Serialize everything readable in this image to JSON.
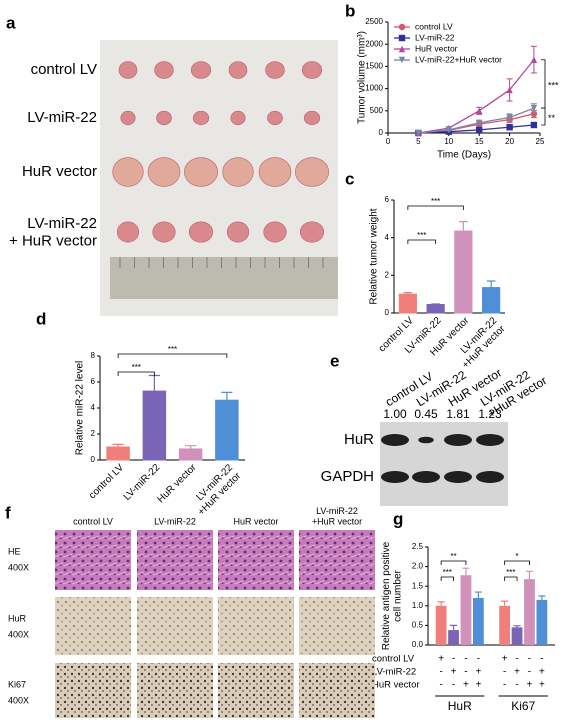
{
  "photo": {
    "panel": "a",
    "row_labels": [
      "control LV",
      "LV-miR-22",
      "HuR vector",
      "LV-miR-22\n+ HuR vector"
    ]
  },
  "chart_data": [
    {
      "panel": "b",
      "type": "line",
      "y_label": "Tumor volume (mm³)",
      "x_label": "Time (Days)",
      "xlim": [
        0,
        25
      ],
      "xticks": [
        0,
        5,
        10,
        15,
        20,
        25
      ],
      "ylim": [
        0,
        2500
      ],
      "yticks": [
        0,
        500,
        1000,
        1500,
        2000,
        2500
      ],
      "legend": "upper left",
      "x": [
        5,
        10,
        15,
        20,
        24
      ],
      "series": [
        {
          "name": "control LV",
          "color": "#d9546e",
          "marker": "circle",
          "values": [
            0,
            60,
            200,
            300,
            430
          ],
          "errors": [
            0,
            15,
            40,
            60,
            80
          ]
        },
        {
          "name": "LV-miR-22",
          "color": "#2f2f9e",
          "marker": "square",
          "values": [
            0,
            30,
            70,
            130,
            180
          ],
          "errors": [
            0,
            10,
            15,
            25,
            30
          ]
        },
        {
          "name": "HuR vector",
          "color": "#b5479b",
          "marker": "triangle-up",
          "values": [
            0,
            110,
            500,
            970,
            1650
          ],
          "errors": [
            0,
            30,
            80,
            250,
            300
          ]
        },
        {
          "name": "LV-miR-22+HuR vector",
          "color": "#7a86a8",
          "marker": "triangle-down",
          "values": [
            0,
            70,
            230,
            350,
            560
          ],
          "errors": [
            0,
            20,
            40,
            80,
            100
          ]
        }
      ],
      "annotations": [
        "***",
        "**"
      ]
    },
    {
      "panel": "c",
      "type": "bar",
      "y_label": "Relative tumor weight",
      "categories": [
        "control LV",
        "LV-miR-22",
        "HuR vector",
        "LV-miR-22\n+HuR vector"
      ],
      "values": [
        1.0,
        0.45,
        4.35,
        1.35
      ],
      "errors": [
        0.08,
        0.03,
        0.5,
        0.35
      ],
      "colors": [
        "#f07e7a",
        "#7a64b5",
        "#d091bb",
        "#4f8fd8"
      ],
      "ylim": [
        0,
        6
      ],
      "yticks": [
        0,
        2,
        4,
        6
      ],
      "annotations": [
        "***",
        "***"
      ]
    },
    {
      "panel": "d",
      "type": "bar",
      "y_label": "Relative miR-22 level",
      "categories": [
        "control LV",
        "LV-miR-22",
        "HuR vector",
        "LV-miR-22\n+HuR vector"
      ],
      "values": [
        1.0,
        5.3,
        0.85,
        4.6
      ],
      "errors": [
        0.2,
        1.2,
        0.25,
        0.6
      ],
      "colors": [
        "#f07e7a",
        "#7a64b5",
        "#d091bb",
        "#4f8fd8"
      ],
      "ylim": [
        0,
        8
      ],
      "yticks": [
        0,
        2,
        4,
        6,
        8
      ],
      "annotations": [
        "***",
        "***"
      ]
    },
    {
      "panel": "g",
      "type": "grouped_bar",
      "y_label": "Relative antigen positive\ncell number",
      "categories": [
        "HuR",
        "Ki67"
      ],
      "ylim": [
        0,
        2.5
      ],
      "yticks": [
        {
          "value": 0,
          "label": "0.0"
        },
        0.5,
        {
          "value": 1,
          "label": "1.0"
        },
        1.5,
        {
          "value": 2,
          "label": "2.0"
        },
        2.5
      ],
      "series": [
        {
          "color": "#f07e7a",
          "values": [
            1.0,
            1.0
          ],
          "errors": [
            0.1,
            0.12
          ]
        },
        {
          "color": "#7a64b5",
          "values": [
            0.38,
            0.45
          ],
          "errors": [
            0.12,
            0.04
          ]
        },
        {
          "color": "#d091bb",
          "values": [
            1.78,
            1.68
          ],
          "errors": [
            0.18,
            0.2
          ]
        },
        {
          "color": "#4f8fd8",
          "values": [
            1.2,
            1.15
          ],
          "errors": [
            0.15,
            0.1
          ]
        }
      ],
      "condition_table": [
        {
          "label": "control LV",
          "signs": [
            "+",
            "-",
            "-",
            "-",
            "+",
            "-",
            "-",
            "-"
          ]
        },
        {
          "label": "LV-miR-22",
          "signs": [
            "-",
            "+",
            "-",
            "+",
            "-",
            "+",
            "-",
            "+"
          ]
        },
        {
          "label": "HuR vector",
          "signs": [
            "-",
            "-",
            "+",
            "+",
            "-",
            "-",
            "+",
            "+"
          ]
        }
      ],
      "annotations": [
        "***",
        "**",
        "***",
        "*"
      ]
    }
  ],
  "blot": {
    "panel": "e",
    "lane_labels": [
      "control LV",
      "LV-miR-22",
      "HuR vector",
      "LV-miR-22\n+HuR vector"
    ],
    "ratios": [
      "1.00",
      "0.45",
      "1.81",
      "1.23"
    ],
    "row_labels": [
      "HuR",
      "GAPDH"
    ]
  },
  "ihc": {
    "panel": "f",
    "column_labels": [
      "control LV",
      "LV-miR-22",
      "HuR vector",
      "LV-miR-22\n+HuR vector"
    ],
    "row_labels": [
      {
        "stain": "HE",
        "magnification": "400X"
      },
      {
        "stain": "HuR",
        "magnification": "400X"
      },
      {
        "stain": "Ki67",
        "magnification": "400X"
      }
    ]
  }
}
